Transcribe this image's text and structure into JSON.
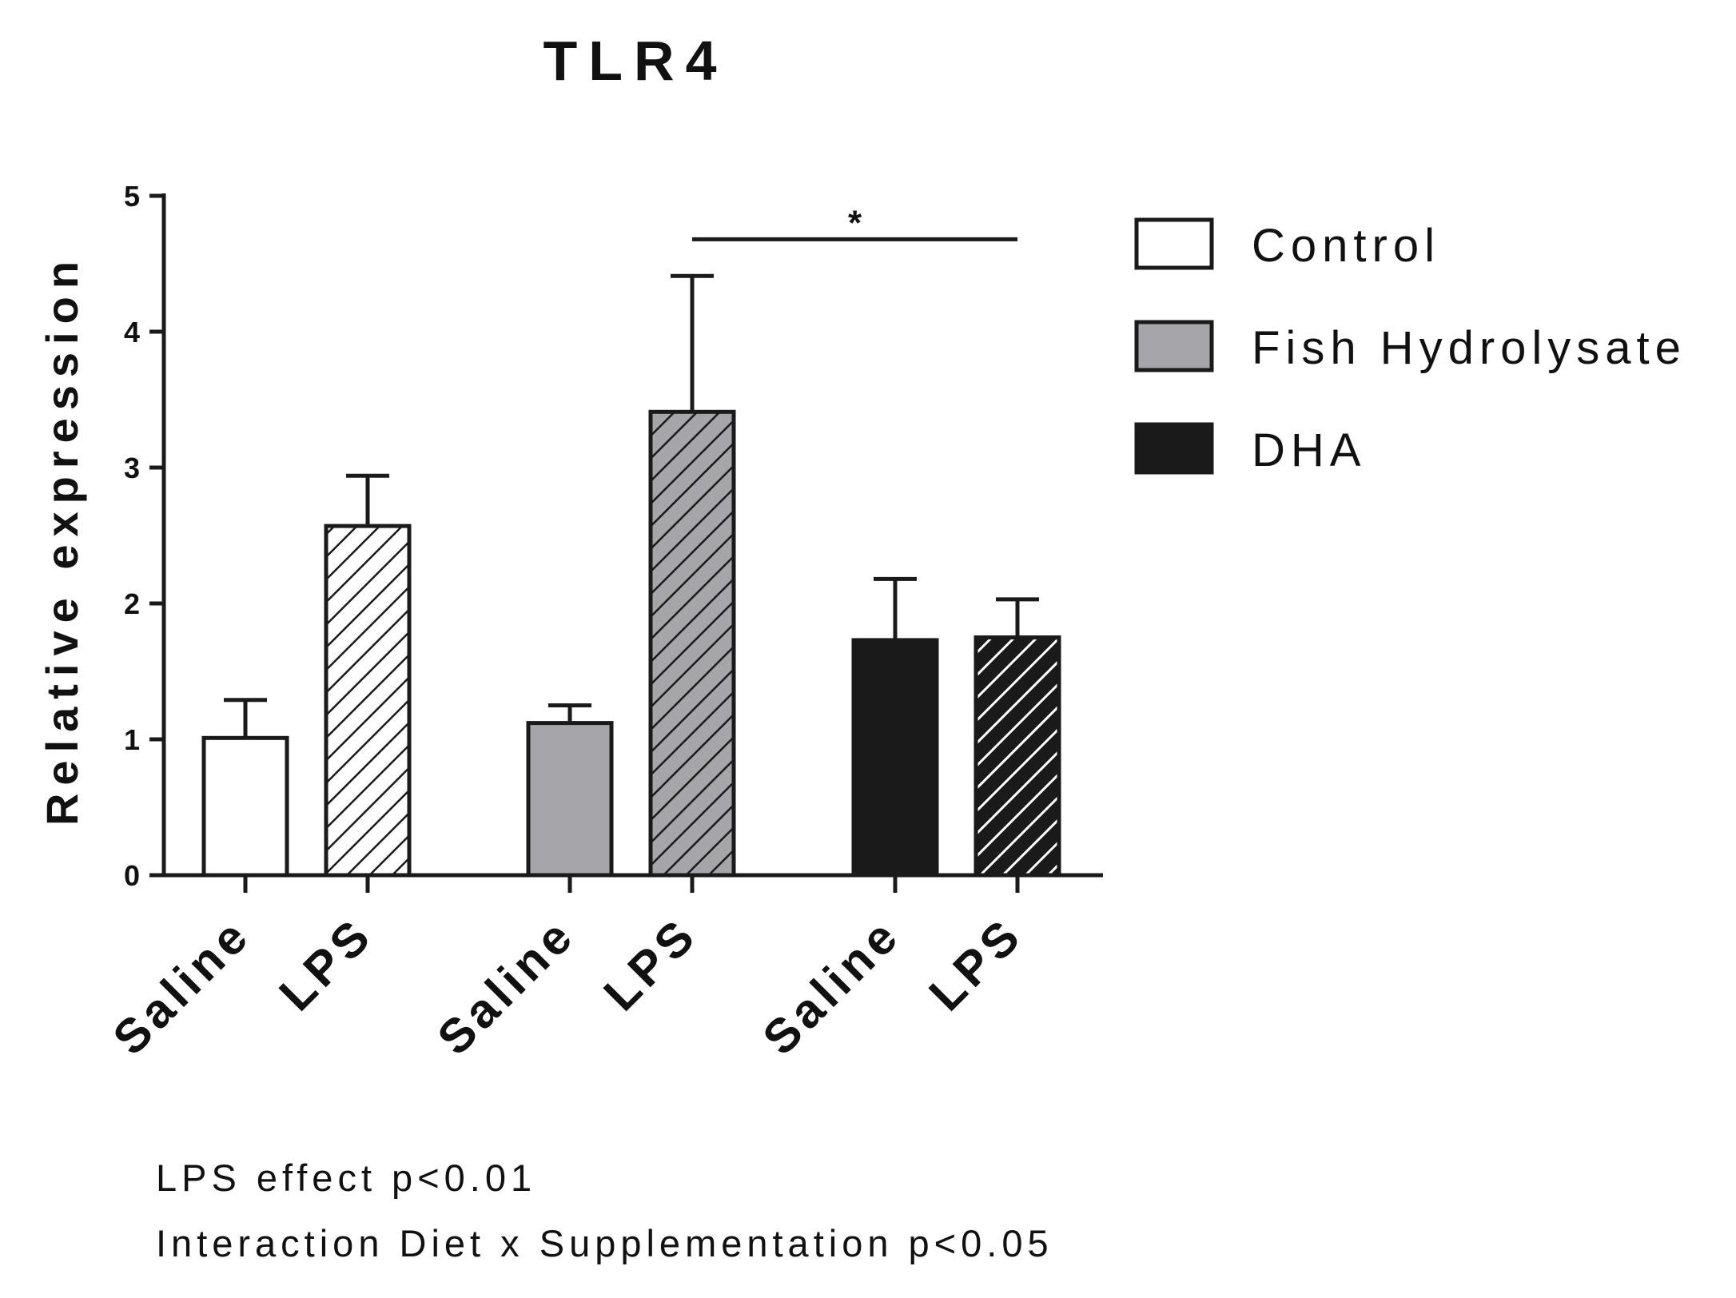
{
  "chart_data": {
    "type": "bar",
    "title": "TLR4",
    "ylabel": "Relative expression",
    "xlabel": "",
    "ylim": [
      0,
      5
    ],
    "yticks": [
      0,
      1,
      2,
      3,
      4,
      5
    ],
    "grid": false,
    "legend_position": "top-right",
    "groups": [
      {
        "name": "Control",
        "color": "#ffffff",
        "bars": [
          {
            "category": "Saline",
            "value": 1.01,
            "error": 0.28,
            "hatched": false
          },
          {
            "category": "LPS",
            "value": 2.57,
            "error": 0.37,
            "hatched": true
          }
        ]
      },
      {
        "name": "Fish Hydrolysate",
        "color": "#a6a6aa",
        "bars": [
          {
            "category": "Saline",
            "value": 1.12,
            "error": 0.13,
            "hatched": false
          },
          {
            "category": "LPS",
            "value": 3.41,
            "error": 1.0,
            "hatched": true
          }
        ]
      },
      {
        "name": "DHA",
        "color": "#1a1a1a",
        "bars": [
          {
            "category": "Saline",
            "value": 1.73,
            "error": 0.45,
            "hatched": false
          },
          {
            "category": "LPS",
            "value": 1.75,
            "error": 0.28,
            "hatched": true
          }
        ]
      }
    ],
    "significance": [
      {
        "label": "*",
        "from_bar": 3,
        "to_bar": 5,
        "y": 4.68
      }
    ],
    "annotations": [
      "LPS effect p<0.01",
      "Interaction Diet x Supplementation p<0.05"
    ]
  }
}
